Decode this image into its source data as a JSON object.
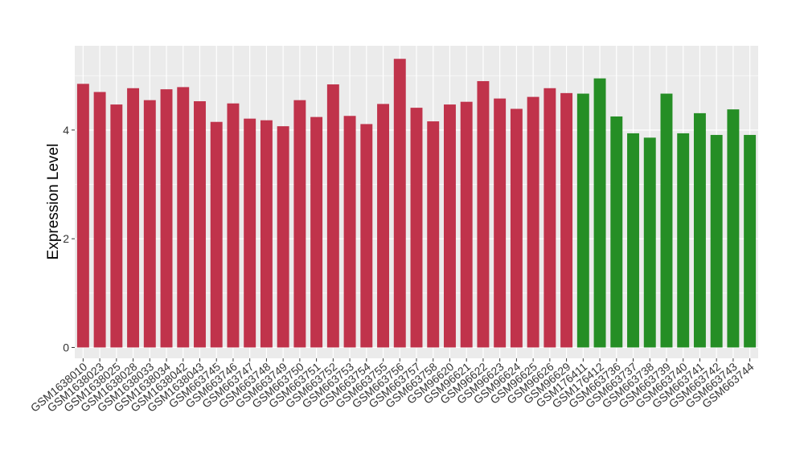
{
  "chart_data": {
    "type": "bar",
    "title": "",
    "xlabel": "",
    "ylabel": "Expression Level",
    "ylim": [
      -0.2,
      5.55
    ],
    "yticks": [
      0,
      2,
      4
    ],
    "grid": true,
    "legend": "none",
    "colors": {
      "group_a": "#c0334b",
      "group_b": "#258e25",
      "panel": "#ebebeb",
      "gridline": "#ffffff",
      "text": "#000000",
      "tick_label": "#333333"
    },
    "categories": [
      "GSM1638010",
      "GSM1638023",
      "GSM1638025",
      "GSM1638028",
      "GSM1638033",
      "GSM1638034",
      "GSM1638042",
      "GSM1638043",
      "GSM663745",
      "GSM663746",
      "GSM663747",
      "GSM663748",
      "GSM663749",
      "GSM663750",
      "GSM663751",
      "GSM663752",
      "GSM663753",
      "GSM663754",
      "GSM663755",
      "GSM663756",
      "GSM663757",
      "GSM663758",
      "GSM96620",
      "GSM96621",
      "GSM96622",
      "GSM96623",
      "GSM96624",
      "GSM96625",
      "GSM96626",
      "GSM96629",
      "GSM176411",
      "GSM176412",
      "GSM663736",
      "GSM663737",
      "GSM663738",
      "GSM663739",
      "GSM663740",
      "GSM663741",
      "GSM663742",
      "GSM663743",
      "GSM663744"
    ],
    "values": [
      4.85,
      4.7,
      4.47,
      4.77,
      4.55,
      4.75,
      4.79,
      4.53,
      4.15,
      4.49,
      4.21,
      4.18,
      4.07,
      4.55,
      4.24,
      4.84,
      4.26,
      4.11,
      4.48,
      5.31,
      4.41,
      4.16,
      4.47,
      4.52,
      4.9,
      4.58,
      4.39,
      4.61,
      4.77,
      4.68,
      4.67,
      4.95,
      4.25,
      3.94,
      3.86,
      4.67,
      3.94,
      4.31,
      3.91,
      4.38,
      3.91
    ],
    "groups": [
      "a",
      "a",
      "a",
      "a",
      "a",
      "a",
      "a",
      "a",
      "a",
      "a",
      "a",
      "a",
      "a",
      "a",
      "a",
      "a",
      "a",
      "a",
      "a",
      "a",
      "a",
      "a",
      "a",
      "a",
      "a",
      "a",
      "a",
      "a",
      "a",
      "a",
      "b",
      "b",
      "b",
      "b",
      "b",
      "b",
      "b",
      "b",
      "b",
      "b",
      "b"
    ]
  }
}
